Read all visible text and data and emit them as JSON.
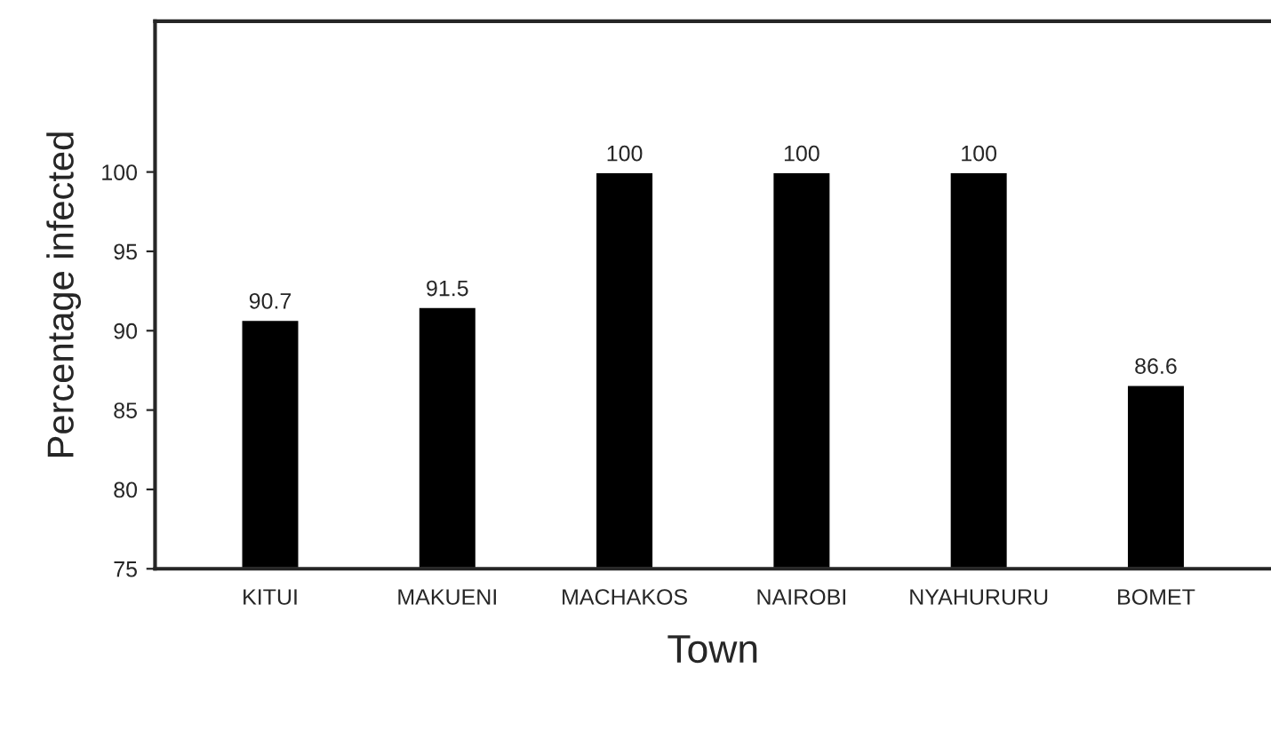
{
  "chart_data": {
    "type": "bar",
    "xlabel": "Town",
    "ylabel": "Percentage infected",
    "categories": [
      "KITUI",
      "MAKUENI",
      "MACHAKOS",
      "NAIROBI",
      "NYAHURURU",
      "BOMET"
    ],
    "values": [
      90.7,
      91.5,
      100,
      100,
      100,
      86.6
    ],
    "color": "#000000",
    "ylim": [
      75,
      109.5
    ],
    "yticks": [
      75,
      80,
      85,
      90,
      95,
      100
    ],
    "data_labels": true,
    "grid": false,
    "legend": false
  }
}
